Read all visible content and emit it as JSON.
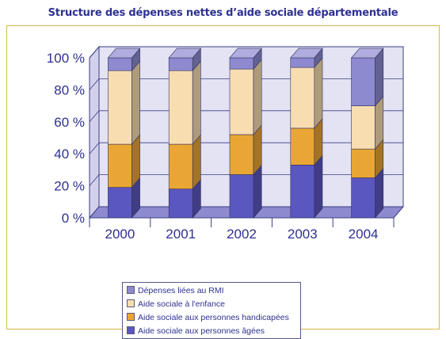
{
  "chart_data": {
    "type": "bar",
    "stacked": true,
    "title": "Structure des dépenses nettes d’aide sociale départementale",
    "categories": [
      "2000",
      "2001",
      "2002",
      "2003",
      "2004"
    ],
    "yticks": [
      "0 %",
      "20 %",
      "40 %",
      "60 %",
      "80 %",
      "100 %"
    ],
    "ylim": [
      0,
      100
    ],
    "grid": true,
    "legend_position": "bottom",
    "series": [
      {
        "name": "Aide sociale aux personnes âgées",
        "color": "#5b57c0",
        "values": [
          19,
          18,
          27,
          33,
          25
        ]
      },
      {
        "name": "Aide sociale aux personnes handicapées",
        "color": "#eaa634",
        "values": [
          27,
          28,
          25,
          23,
          18
        ]
      },
      {
        "name": "Aide sociale à l'enfance",
        "color": "#f8ddb0",
        "values": [
          46,
          46,
          41,
          38,
          27
        ]
      },
      {
        "name": "Dépenses liées au RMI",
        "color": "#8e8ad0",
        "values": [
          8,
          8,
          7,
          6,
          30
        ]
      }
    ]
  }
}
